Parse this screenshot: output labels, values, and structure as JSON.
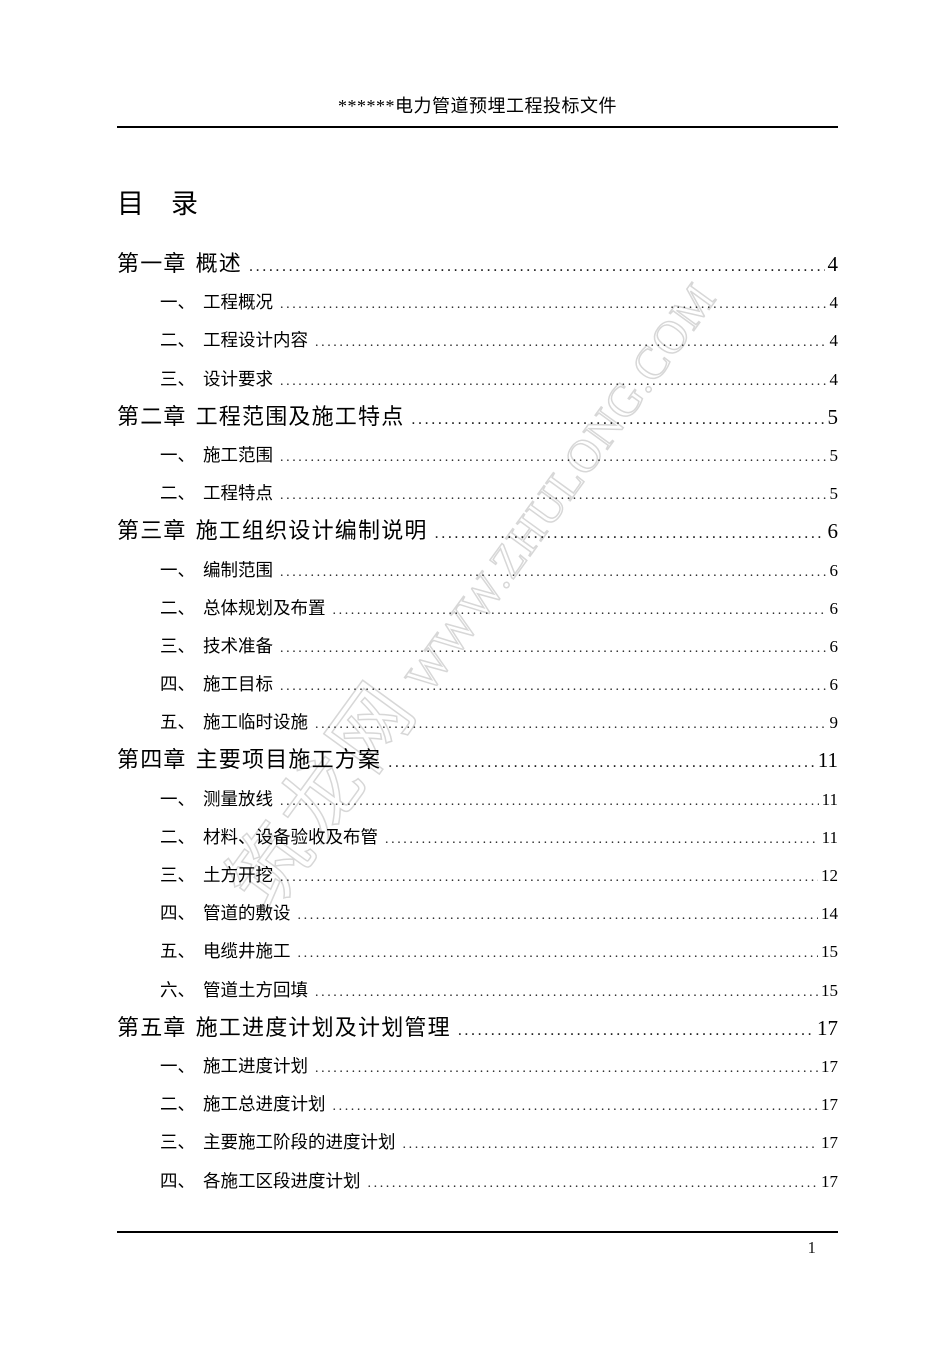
{
  "header": {
    "title": "******电力管道预埋工程投标文件"
  },
  "toc_title": "目　录",
  "toc": {
    "entries": [
      {
        "level": 1,
        "num": "第一章",
        "title": "概述",
        "page": "4"
      },
      {
        "level": 2,
        "num": "一、",
        "title": "工程概况",
        "page": "4"
      },
      {
        "level": 2,
        "num": "二、",
        "title": "工程设计内容",
        "page": "4"
      },
      {
        "level": 2,
        "num": "三、",
        "title": "设计要求",
        "page": "4"
      },
      {
        "level": 1,
        "num": "第二章",
        "title": "工程范围及施工特点",
        "page": "5"
      },
      {
        "level": 2,
        "num": "一、",
        "title": "施工范围",
        "page": "5"
      },
      {
        "level": 2,
        "num": "二、",
        "title": "工程特点",
        "page": "5"
      },
      {
        "level": 1,
        "num": "第三章",
        "title": "施工组织设计编制说明",
        "page": "6"
      },
      {
        "level": 2,
        "num": "一、",
        "title": "编制范围",
        "page": "6"
      },
      {
        "level": 2,
        "num": "二、",
        "title": "总体规划及布置",
        "page": "6"
      },
      {
        "level": 2,
        "num": "三、",
        "title": "技术准备",
        "page": "6"
      },
      {
        "level": 2,
        "num": "四、",
        "title": "施工目标",
        "page": "6"
      },
      {
        "level": 2,
        "num": "五、",
        "title": "施工临时设施",
        "page": "9"
      },
      {
        "level": 1,
        "num": "第四章",
        "title": "主要项目施工方案",
        "page": "11"
      },
      {
        "level": 2,
        "num": "一、",
        "title": "测量放线",
        "page": "11"
      },
      {
        "level": 2,
        "num": "二、",
        "title": "材料、设备验收及布管",
        "page": "11"
      },
      {
        "level": 2,
        "num": "三、",
        "title": "土方开挖",
        "page": "12"
      },
      {
        "level": 2,
        "num": "四、",
        "title": "管道的敷设",
        "page": "14"
      },
      {
        "level": 2,
        "num": "五、",
        "title": "电缆井施工",
        "page": "15"
      },
      {
        "level": 2,
        "num": "六、",
        "title": "管道土方回填",
        "page": "15"
      },
      {
        "level": 1,
        "num": "第五章",
        "title": "施工进度计划及计划管理",
        "page": "17"
      },
      {
        "level": 2,
        "num": "一、",
        "title": "施工进度计划",
        "page": "17"
      },
      {
        "level": 2,
        "num": "二、",
        "title": "施工总进度计划",
        "page": "17"
      },
      {
        "level": 2,
        "num": "三、",
        "title": "主要施工阶段的进度计划",
        "page": "17"
      },
      {
        "level": 2,
        "num": "四、",
        "title": "各施工区段进度计划",
        "page": "17"
      }
    ]
  },
  "watermark": {
    "cn": "筑龙网",
    "en": "WWW.ZHULONG.COM"
  },
  "footer": {
    "page_number": "1"
  }
}
